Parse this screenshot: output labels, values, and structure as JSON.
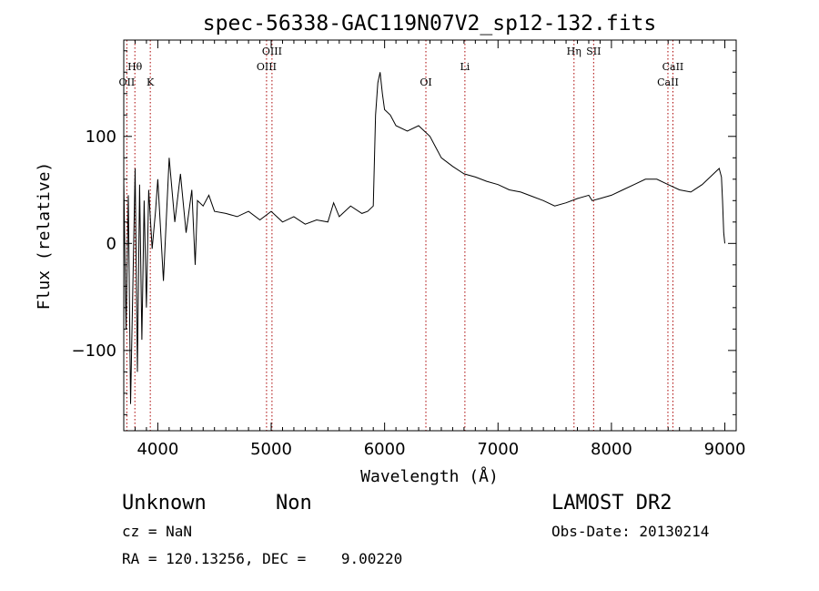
{
  "chart_data": {
    "type": "line",
    "title": "spec-56338-GAC119N07V2_sp12-132.fits",
    "xlabel": "Wavelength (Å)",
    "ylabel": "Flux (relative)",
    "xlim": [
      3700,
      9100
    ],
    "ylim": [
      -175,
      190
    ],
    "xticks": [
      4000,
      5000,
      6000,
      7000,
      8000,
      9000
    ],
    "yticks": [
      -100,
      0,
      100
    ],
    "xtick_labels": [
      "4000",
      "5000",
      "6000",
      "7000",
      "8000",
      "9000"
    ],
    "ytick_labels": [
      "−100",
      "0",
      "100"
    ],
    "series": [
      {
        "x": [
          3700,
          3720,
          3740,
          3760,
          3780,
          3800,
          3820,
          3840,
          3860,
          3880,
          3900,
          3920,
          3950,
          3980,
          4000,
          4050,
          4100,
          4150,
          4200,
          4250,
          4300,
          4330,
          4350,
          4400,
          4450,
          4500,
          4600,
          4700,
          4800,
          4900,
          5000,
          5100,
          5200,
          5300,
          5400,
          5500,
          5550,
          5600,
          5700,
          5800,
          5850,
          5900,
          5920,
          5940,
          5960,
          5980,
          6000,
          6050,
          6100,
          6200,
          6300,
          6400,
          6450,
          6500,
          6600,
          6700,
          6800,
          6900,
          7000,
          7100,
          7200,
          7300,
          7400,
          7500,
          7600,
          7700,
          7800,
          7830,
          7900,
          8000,
          8100,
          8200,
          8300,
          8400,
          8500,
          8600,
          8700,
          8800,
          8900,
          8950,
          8970,
          8980,
          8990,
          9000
        ],
        "y": [
          60,
          -80,
          45,
          -150,
          -40,
          70,
          -120,
          55,
          -90,
          40,
          -60,
          50,
          -5,
          30,
          60,
          -35,
          80,
          20,
          65,
          10,
          50,
          -20,
          40,
          35,
          45,
          30,
          28,
          25,
          30,
          22,
          30,
          20,
          25,
          18,
          22,
          20,
          38,
          25,
          35,
          28,
          30,
          35,
          120,
          150,
          160,
          140,
          125,
          120,
          110,
          105,
          110,
          100,
          90,
          80,
          72,
          65,
          62,
          58,
          55,
          50,
          48,
          44,
          40,
          35,
          38,
          42,
          45,
          40,
          42,
          45,
          50,
          55,
          60,
          60,
          55,
          50,
          48,
          55,
          65,
          70,
          62,
          40,
          10,
          0
        ]
      }
    ],
    "lines": [
      {
        "name": "Hθ",
        "x": 3798,
        "row": 1
      },
      {
        "name": "OII",
        "x": 3727,
        "row": 2
      },
      {
        "name": "K",
        "x": 3934,
        "row": 2
      },
      {
        "name": "OIII",
        "x": 4959,
        "row": 1
      },
      {
        "name": "OIII",
        "x": 5007,
        "row": 0
      },
      {
        "name": "OI",
        "x": 6364,
        "row": 2
      },
      {
        "name": "Li",
        "x": 6708,
        "row": 1
      },
      {
        "name": "Hη",
        "x": 7670,
        "row": 0
      },
      {
        "name": "SII",
        "x": 7843,
        "row": 0
      },
      {
        "name": "CaII",
        "x": 8542,
        "row": 1
      },
      {
        "name": "CaII",
        "x": 8498,
        "row": 2
      }
    ]
  },
  "info": {
    "class": "Unknown",
    "subclass": "Non",
    "cz": "cz = NaN",
    "radec": "RA = 120.13256, DEC =    9.00220",
    "survey": "LAMOST DR2",
    "obsdate": "Obs-Date: 20130214"
  }
}
